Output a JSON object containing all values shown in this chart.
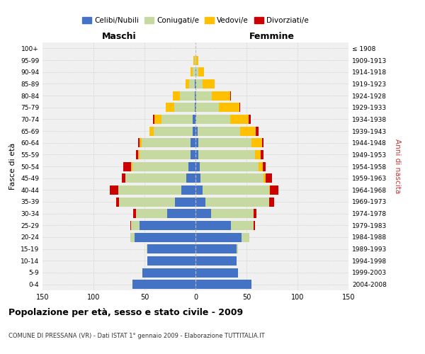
{
  "age_groups": [
    "0-4",
    "5-9",
    "10-14",
    "15-19",
    "20-24",
    "25-29",
    "30-34",
    "35-39",
    "40-44",
    "45-49",
    "50-54",
    "55-59",
    "60-64",
    "65-69",
    "70-74",
    "75-79",
    "80-84",
    "85-89",
    "90-94",
    "95-99",
    "100+"
  ],
  "birth_years": [
    "2004-2008",
    "1999-2003",
    "1994-1998",
    "1989-1993",
    "1984-1988",
    "1979-1983",
    "1974-1978",
    "1969-1973",
    "1964-1968",
    "1959-1963",
    "1954-1958",
    "1949-1953",
    "1944-1948",
    "1939-1943",
    "1934-1938",
    "1929-1933",
    "1924-1928",
    "1919-1923",
    "1914-1918",
    "1909-1913",
    "≤ 1908"
  ],
  "male": {
    "celibi": [
      62,
      52,
      47,
      47,
      60,
      55,
      28,
      20,
      14,
      9,
      7,
      5,
      5,
      3,
      3,
      1,
      1,
      1,
      0,
      0,
      0
    ],
    "coniugati": [
      0,
      0,
      0,
      1,
      4,
      8,
      30,
      55,
      62,
      60,
      55,
      50,
      48,
      38,
      30,
      20,
      14,
      5,
      3,
      1,
      0
    ],
    "vedovi": [
      0,
      0,
      0,
      0,
      0,
      0,
      0,
      0,
      0,
      0,
      1,
      1,
      2,
      4,
      7,
      8,
      7,
      4,
      2,
      1,
      0
    ],
    "divorziati": [
      0,
      0,
      0,
      0,
      0,
      1,
      3,
      3,
      8,
      3,
      8,
      2,
      1,
      0,
      2,
      0,
      0,
      0,
      0,
      0,
      0
    ]
  },
  "female": {
    "nubili": [
      55,
      42,
      40,
      40,
      45,
      35,
      15,
      10,
      7,
      5,
      4,
      3,
      3,
      2,
      1,
      1,
      1,
      1,
      1,
      0,
      0
    ],
    "coniugate": [
      0,
      0,
      0,
      2,
      8,
      22,
      42,
      62,
      65,
      62,
      58,
      55,
      52,
      42,
      33,
      22,
      15,
      6,
      2,
      1,
      0
    ],
    "vedove": [
      0,
      0,
      0,
      0,
      0,
      0,
      0,
      0,
      1,
      2,
      4,
      6,
      10,
      15,
      18,
      20,
      18,
      12,
      5,
      2,
      0
    ],
    "divorziate": [
      0,
      0,
      0,
      0,
      0,
      1,
      3,
      5,
      8,
      6,
      3,
      3,
      2,
      3,
      2,
      1,
      1,
      0,
      0,
      0,
      0
    ]
  },
  "colors": {
    "celibi": "#4472c4",
    "coniugati": "#c5d9a0",
    "vedovi": "#ffc000",
    "divorziati": "#cc0000"
  },
  "title": "Popolazione per età, sesso e stato civile - 2009",
  "subtitle": "COMUNE DI PRESSANA (VR) - Dati ISTAT 1° gennaio 2009 - Elaborazione TUTTITALIA.IT",
  "xlabel_left": "Maschi",
  "xlabel_right": "Femmine",
  "ylabel_left": "Fasce di età",
  "ylabel_right": "Anni di nascita",
  "xlim": 150,
  "bg_color": "#ffffff",
  "plot_bg": "#f0f0f0",
  "grid_color": "#cccccc",
  "legend_labels": [
    "Celibi/Nubili",
    "Coniugati/e",
    "Vedovi/e",
    "Divorziati/e"
  ]
}
